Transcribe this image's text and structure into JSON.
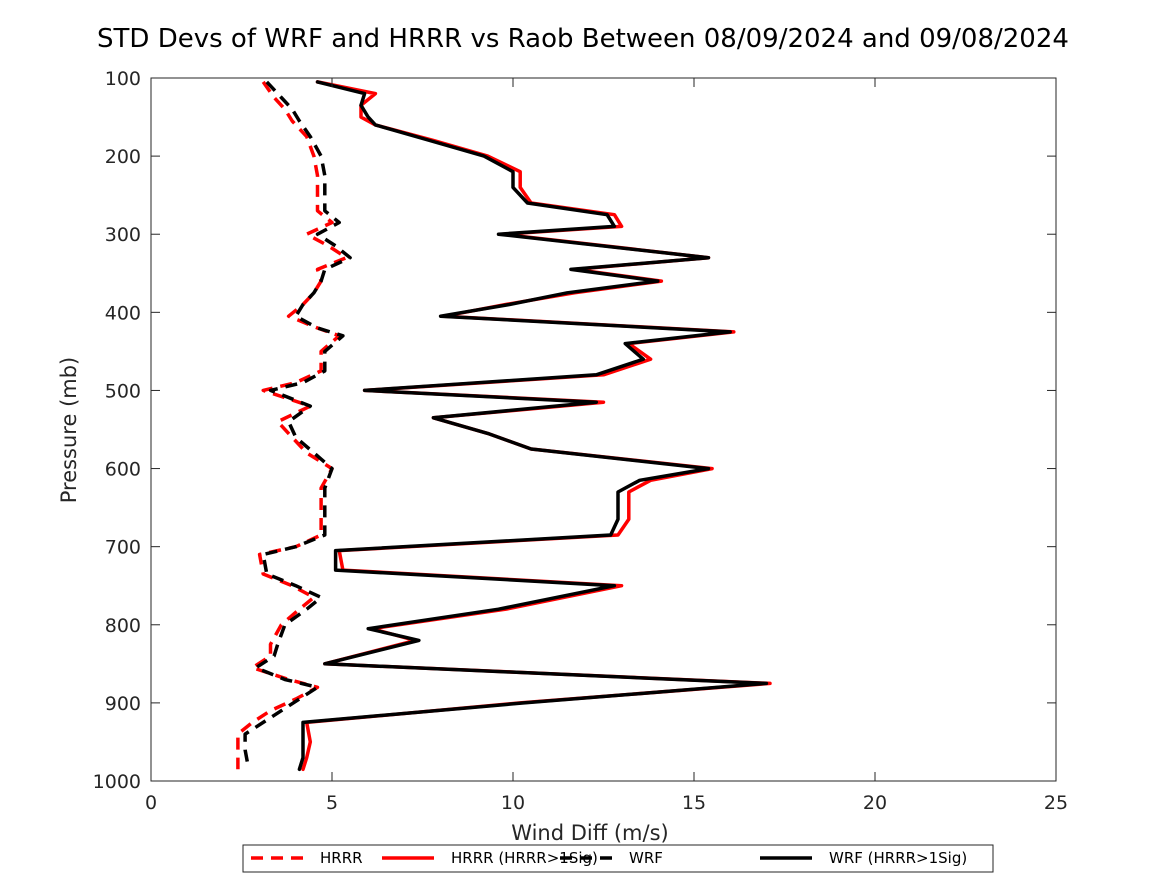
{
  "chart_data": {
    "type": "line",
    "title": "STD Devs of WRF and HRRR vs Raob Between 08/09/2024 and 09/08/2024",
    "xlabel": "Wind Diff (m/s)",
    "ylabel": "Pressure (mb)",
    "xlim": [
      0,
      25
    ],
    "ylim": [
      100,
      1000
    ],
    "y_reversed": true,
    "grid": false,
    "legend_position": "bottom-outside",
    "x_ticks": [
      "0",
      "5",
      "10",
      "15",
      "20",
      "25"
    ],
    "y_ticks": [
      "100",
      "200",
      "300",
      "400",
      "500",
      "600",
      "700",
      "800",
      "900",
      "1000"
    ],
    "series": [
      {
        "name": "HRRR",
        "color": "#ff0000",
        "style": "dashed",
        "points": [
          [
            3.1,
            105
          ],
          [
            3.4,
            125
          ],
          [
            3.7,
            140
          ],
          [
            3.9,
            155
          ],
          [
            4.3,
            175
          ],
          [
            4.5,
            200
          ],
          [
            4.6,
            225
          ],
          [
            4.6,
            250
          ],
          [
            4.6,
            270
          ],
          [
            5.0,
            285
          ],
          [
            4.3,
            300
          ],
          [
            4.9,
            315
          ],
          [
            5.4,
            330
          ],
          [
            4.6,
            345
          ],
          [
            4.7,
            360
          ],
          [
            4.5,
            375
          ],
          [
            4.2,
            390
          ],
          [
            3.8,
            405
          ],
          [
            4.6,
            420
          ],
          [
            5.2,
            430
          ],
          [
            4.7,
            450
          ],
          [
            4.7,
            475
          ],
          [
            4.0,
            490
          ],
          [
            3.1,
            500
          ],
          [
            4.4,
            520
          ],
          [
            3.5,
            540
          ],
          [
            3.9,
            560
          ],
          [
            4.3,
            580
          ],
          [
            5.0,
            600
          ],
          [
            4.7,
            625
          ],
          [
            4.7,
            650
          ],
          [
            4.7,
            685
          ],
          [
            4.0,
            700
          ],
          [
            3.0,
            710
          ],
          [
            3.1,
            735
          ],
          [
            3.9,
            750
          ],
          [
            4.5,
            765
          ],
          [
            4.1,
            780
          ],
          [
            3.6,
            800
          ],
          [
            3.3,
            825
          ],
          [
            3.3,
            840
          ],
          [
            2.8,
            855
          ],
          [
            3.8,
            870
          ],
          [
            4.6,
            880
          ],
          [
            4.0,
            895
          ],
          [
            3.3,
            910
          ],
          [
            2.8,
            925
          ],
          [
            2.4,
            940
          ],
          [
            2.4,
            960
          ],
          [
            2.4,
            985
          ]
        ]
      },
      {
        "name": "HRRR (HRRR>1Sig)",
        "color": "#ff0000",
        "style": "solid",
        "points": [
          [
            4.6,
            105
          ],
          [
            6.2,
            120
          ],
          [
            5.8,
            135
          ],
          [
            5.8,
            150
          ],
          [
            6.2,
            160
          ],
          [
            7.8,
            180
          ],
          [
            9.3,
            200
          ],
          [
            10.2,
            220
          ],
          [
            10.2,
            240
          ],
          [
            10.5,
            260
          ],
          [
            12.8,
            275
          ],
          [
            13.0,
            290
          ],
          [
            9.7,
            300
          ],
          [
            15.4,
            330
          ],
          [
            11.7,
            345
          ],
          [
            14.1,
            360
          ],
          [
            11.7,
            375
          ],
          [
            9.8,
            390
          ],
          [
            8.1,
            405
          ],
          [
            16.1,
            425
          ],
          [
            13.2,
            440
          ],
          [
            13.8,
            460
          ],
          [
            12.5,
            480
          ],
          [
            5.9,
            500
          ],
          [
            12.5,
            515
          ],
          [
            7.8,
            535
          ],
          [
            9.3,
            555
          ],
          [
            10.5,
            575
          ],
          [
            15.5,
            600
          ],
          [
            13.8,
            615
          ],
          [
            13.2,
            630
          ],
          [
            13.2,
            665
          ],
          [
            12.9,
            685
          ],
          [
            5.2,
            705
          ],
          [
            5.3,
            730
          ],
          [
            13.0,
            750
          ],
          [
            9.8,
            780
          ],
          [
            6.1,
            805
          ],
          [
            7.3,
            820
          ],
          [
            4.8,
            850
          ],
          [
            17.1,
            875
          ],
          [
            10.2,
            900
          ],
          [
            4.3,
            925
          ],
          [
            4.4,
            950
          ],
          [
            4.3,
            970
          ],
          [
            4.2,
            985
          ]
        ]
      },
      {
        "name": "WRF",
        "color": "#000000",
        "style": "dashed",
        "points": [
          [
            3.2,
            105
          ],
          [
            3.6,
            125
          ],
          [
            3.9,
            140
          ],
          [
            4.1,
            155
          ],
          [
            4.4,
            175
          ],
          [
            4.7,
            200
          ],
          [
            4.8,
            225
          ],
          [
            4.8,
            250
          ],
          [
            4.8,
            270
          ],
          [
            5.2,
            285
          ],
          [
            4.6,
            300
          ],
          [
            5.1,
            315
          ],
          [
            5.5,
            330
          ],
          [
            4.8,
            345
          ],
          [
            4.7,
            360
          ],
          [
            4.5,
            375
          ],
          [
            4.2,
            390
          ],
          [
            4.0,
            405
          ],
          [
            4.6,
            420
          ],
          [
            5.3,
            430
          ],
          [
            4.8,
            450
          ],
          [
            4.8,
            475
          ],
          [
            4.2,
            490
          ],
          [
            3.3,
            500
          ],
          [
            4.4,
            520
          ],
          [
            3.8,
            540
          ],
          [
            4.0,
            560
          ],
          [
            4.5,
            580
          ],
          [
            5.0,
            600
          ],
          [
            4.8,
            625
          ],
          [
            4.8,
            650
          ],
          [
            4.8,
            685
          ],
          [
            4.0,
            700
          ],
          [
            3.1,
            710
          ],
          [
            3.2,
            735
          ],
          [
            4.0,
            750
          ],
          [
            4.7,
            765
          ],
          [
            4.3,
            780
          ],
          [
            3.7,
            800
          ],
          [
            3.5,
            825
          ],
          [
            3.4,
            840
          ],
          [
            2.9,
            855
          ],
          [
            3.7,
            870
          ],
          [
            4.6,
            880
          ],
          [
            4.1,
            895
          ],
          [
            3.6,
            910
          ],
          [
            3.1,
            925
          ],
          [
            2.6,
            940
          ],
          [
            2.6,
            960
          ],
          [
            2.7,
            985
          ]
        ]
      },
      {
        "name": "WRF (HRRR>1Sig)",
        "color": "#000000",
        "style": "solid",
        "points": [
          [
            4.6,
            105
          ],
          [
            5.9,
            120
          ],
          [
            5.8,
            135
          ],
          [
            6.0,
            150
          ],
          [
            6.2,
            160
          ],
          [
            7.7,
            180
          ],
          [
            9.2,
            200
          ],
          [
            10.0,
            220
          ],
          [
            10.0,
            240
          ],
          [
            10.4,
            260
          ],
          [
            12.6,
            275
          ],
          [
            12.8,
            290
          ],
          [
            9.6,
            300
          ],
          [
            15.4,
            330
          ],
          [
            11.6,
            345
          ],
          [
            14.0,
            360
          ],
          [
            11.5,
            375
          ],
          [
            9.9,
            390
          ],
          [
            8.0,
            405
          ],
          [
            16.0,
            425
          ],
          [
            13.1,
            440
          ],
          [
            13.6,
            460
          ],
          [
            12.3,
            480
          ],
          [
            5.9,
            500
          ],
          [
            12.3,
            515
          ],
          [
            7.8,
            535
          ],
          [
            9.3,
            555
          ],
          [
            10.5,
            575
          ],
          [
            15.4,
            600
          ],
          [
            13.5,
            615
          ],
          [
            12.9,
            630
          ],
          [
            12.9,
            665
          ],
          [
            12.7,
            685
          ],
          [
            5.1,
            705
          ],
          [
            5.1,
            730
          ],
          [
            12.8,
            750
          ],
          [
            9.6,
            780
          ],
          [
            6.0,
            805
          ],
          [
            7.4,
            820
          ],
          [
            4.8,
            850
          ],
          [
            17.0,
            875
          ],
          [
            10.3,
            900
          ],
          [
            4.2,
            925
          ],
          [
            4.2,
            950
          ],
          [
            4.2,
            970
          ],
          [
            4.1,
            985
          ]
        ]
      }
    ]
  }
}
